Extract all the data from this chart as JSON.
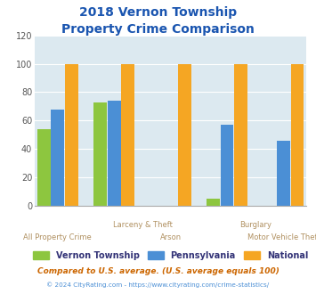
{
  "title_line1": "2018 Vernon Township",
  "title_line2": "Property Crime Comparison",
  "categories": [
    "All Property Crime",
    "Larceny & Theft",
    "Arson",
    "Burglary",
    "Motor Vehicle Theft"
  ],
  "series": {
    "Vernon Township": [
      54,
      73,
      0,
      5,
      0
    ],
    "Pennsylvania": [
      68,
      74,
      0,
      57,
      46
    ],
    "National": [
      100,
      100,
      100,
      100,
      100
    ]
  },
  "colors": {
    "Vernon Township": "#8DC63F",
    "Pennsylvania": "#4B8FD5",
    "National": "#F5A623"
  },
  "ylim": [
    0,
    120
  ],
  "yticks": [
    0,
    20,
    40,
    60,
    80,
    100,
    120
  ],
  "background_color": "#DCE9F0",
  "grid_color": "#FFFFFF",
  "title_color": "#1A55B0",
  "axis_label_color": "#B09060",
  "legend_label_color": "#333377",
  "footnote1": "Compared to U.S. average. (U.S. average equals 100)",
  "footnote2": "© 2024 CityRating.com - https://www.cityrating.com/crime-statistics/",
  "footnote1_color": "#CC6600",
  "footnote2_color": "#4B8FD5"
}
